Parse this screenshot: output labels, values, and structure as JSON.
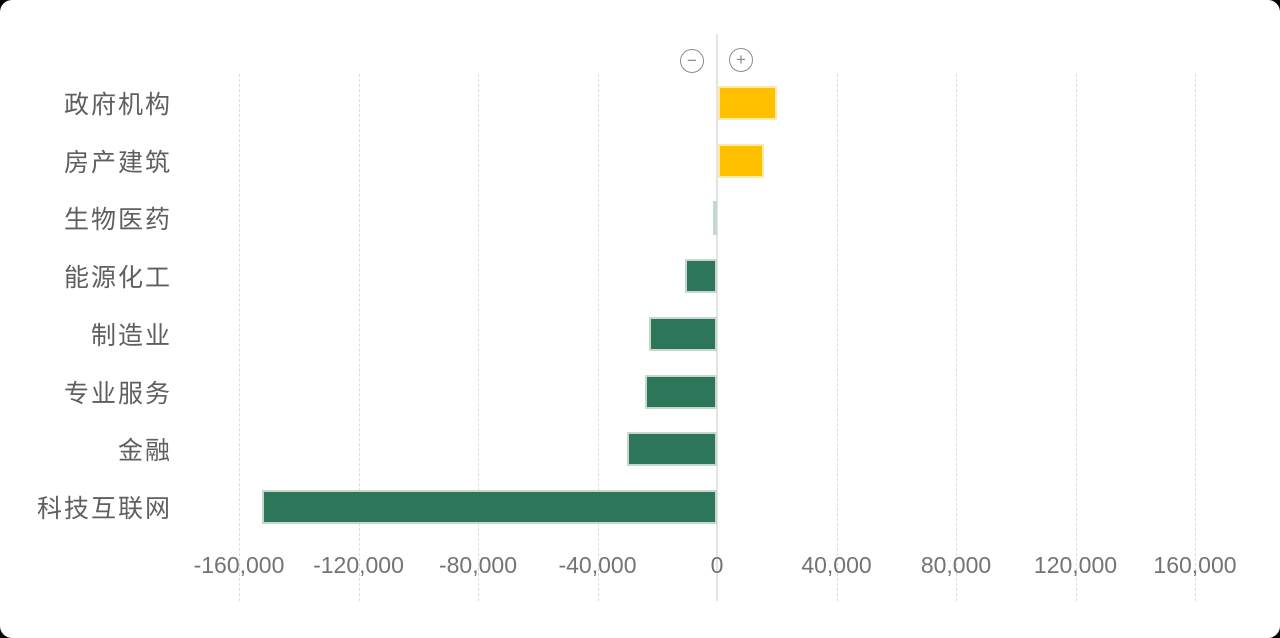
{
  "controls": {
    "zoom_out_symbol": "−",
    "zoom_in_symbol": "+"
  },
  "chart_data": {
    "type": "bar",
    "orientation": "horizontal",
    "categories": [
      "政府机构",
      "房产建筑",
      "生物医药",
      "能源化工",
      "制造业",
      "专业服务",
      "金融",
      "科技互联网"
    ],
    "values": [
      19600,
      15400,
      -1500,
      -10700,
      -22600,
      -24000,
      -30100,
      -152300
    ],
    "title": "",
    "xlabel": "",
    "ylabel": "",
    "x_ticks": [
      -160000,
      -120000,
      -80000,
      -40000,
      0,
      40000,
      80000,
      120000,
      160000
    ],
    "x_tick_labels": [
      "-160,000",
      "-120,000",
      "-80,000",
      "-40,000",
      "0",
      "40,000",
      "80,000",
      "120,000",
      "160,000"
    ],
    "xlim": [
      -180000,
      188000
    ],
    "grid": "vertical-dashed",
    "legend": "none",
    "colors": {
      "positive_bar": "#FFC000",
      "positive_bar_border": "#FFE9A8",
      "negative_bar": "#2D7659",
      "negative_bar_border": "#C5D8CE",
      "zero_axis_line": "#E4E4E4",
      "grid_line": "#DCDCDC",
      "tick_label_text": "#737373",
      "category_label_text": "#5F5F5F",
      "control_icon": "#8C8C8C"
    }
  }
}
